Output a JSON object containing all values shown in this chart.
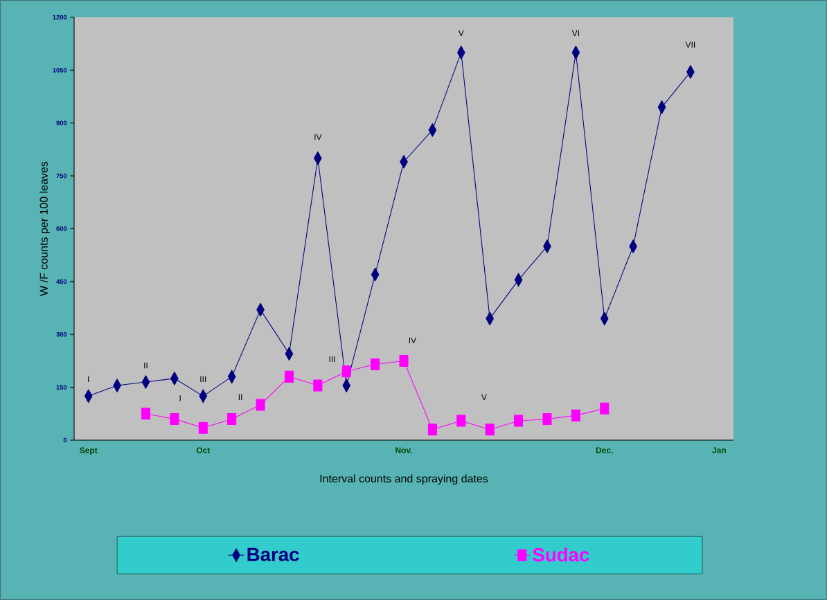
{
  "chart_data": {
    "type": "line",
    "xlabel": "Interval counts and spraying dates",
    "ylabel": "W /F counts per 100 leaves",
    "categories": [
      "Sept",
      null,
      null,
      null,
      "Oct",
      null,
      null,
      null,
      null,
      null,
      null,
      "Nov.",
      null,
      null,
      null,
      null,
      null,
      null,
      "Dec.",
      null,
      null,
      null,
      "Jan"
    ],
    "ylim": [
      0,
      1200
    ],
    "yticks": [
      0,
      150,
      300,
      450,
      600,
      750,
      900,
      1050,
      1200
    ],
    "grid": false,
    "legend": "bottom",
    "line_style": "solid",
    "series": [
      {
        "name": "Barac",
        "color": "#000080",
        "marker": "diamond",
        "values": [
          125,
          155,
          165,
          175,
          125,
          180,
          370,
          245,
          800,
          155,
          470,
          790,
          880,
          1100,
          345,
          455,
          550,
          1100,
          345,
          550,
          945,
          1045,
          null
        ]
      },
      {
        "name": "Sudac",
        "color": "#ff00ff",
        "marker": "square",
        "values": [
          null,
          null,
          75,
          60,
          35,
          60,
          100,
          180,
          155,
          195,
          215,
          225,
          30,
          55,
          30,
          55,
          60,
          70,
          90,
          null,
          null,
          null,
          null
        ]
      }
    ],
    "annotations": [
      "I",
      "II",
      "III",
      "IV",
      "V",
      "VI",
      "VII",
      "I",
      "II",
      "III",
      "IV",
      "V"
    ]
  }
}
